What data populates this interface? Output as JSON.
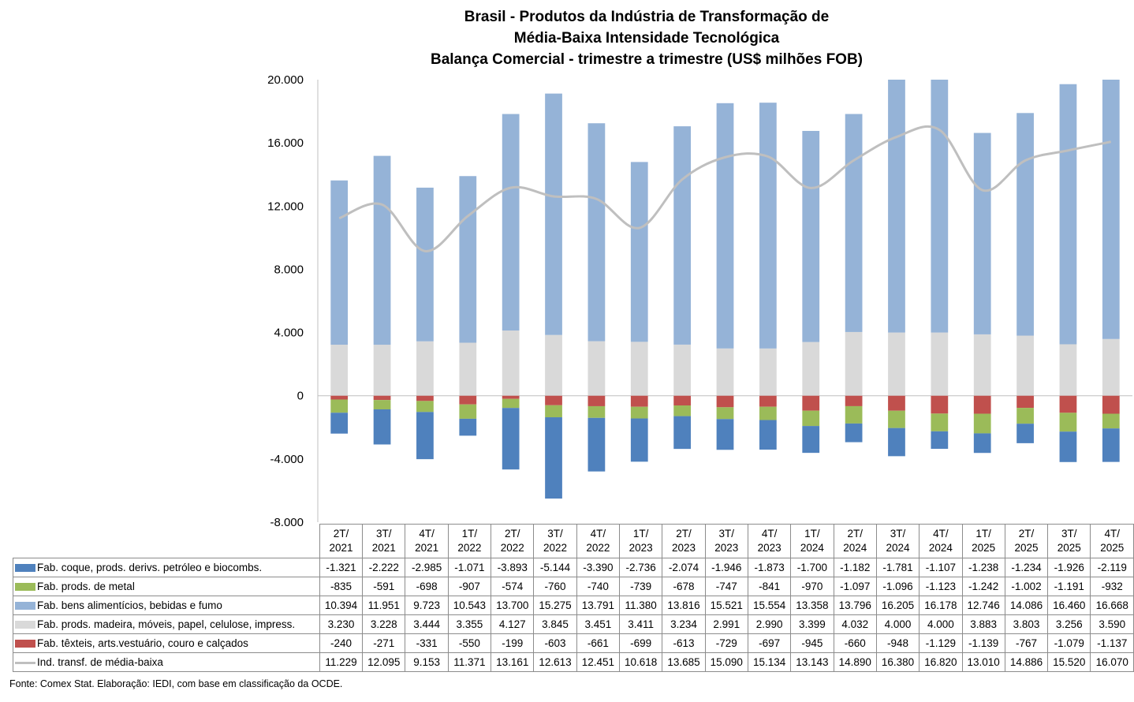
{
  "chart_data": {
    "type": "bar",
    "stacked": true,
    "title": "Brasil - Produtos da Indústria de Transformação de Média-Baixa Intensidade Tecnológica Balança Comercial - trimestre a trimestre (US$ milhões FOB)",
    "title_lines": [
      "Brasil - Produtos da Indústria de Transformação de",
      "Média-Baixa Intensidade Tecnológica",
      "Balança Comercial - trimestre a trimestre (US$ milhões FOB)"
    ],
    "xlabel": "",
    "ylabel": "",
    "ylim": [
      -8000,
      20000
    ],
    "yticks": [
      -8000,
      -4000,
      0,
      4000,
      8000,
      12000,
      16000,
      20000
    ],
    "ytick_labels": [
      "-8.000",
      "-4.000",
      "0",
      "4.000",
      "8.000",
      "12.000",
      "16.000",
      "20.000"
    ],
    "grid": false,
    "legend": "table-below",
    "categories": [
      [
        "2T/",
        "2021"
      ],
      [
        "3T/",
        "2021"
      ],
      [
        "4T/",
        "2021"
      ],
      [
        "1T/",
        "2022"
      ],
      [
        "2T/",
        "2022"
      ],
      [
        "3T/",
        "2022"
      ],
      [
        "4T/",
        "2022"
      ],
      [
        "1T/",
        "2023"
      ],
      [
        "2T/",
        "2023"
      ],
      [
        "3T/",
        "2023"
      ],
      [
        "4T/",
        "2023"
      ],
      [
        "1T/",
        "2024"
      ],
      [
        "2T/",
        "2024"
      ],
      [
        "3T/",
        "2024"
      ],
      [
        "4T/",
        "2024"
      ],
      [
        "1T/",
        "2025"
      ],
      [
        "2T/",
        "2025"
      ],
      [
        "3T/",
        "2025"
      ],
      [
        "4T/",
        "2025"
      ]
    ],
    "series": [
      {
        "name": "Fab. coque, prods. derivs. petróleo e biocombs.",
        "kind": "bar",
        "color": "#4f81bd",
        "values": [
          -1321,
          -2222,
          -2985,
          -1071,
          -3893,
          -5144,
          -3390,
          -2736,
          -2074,
          -1946,
          -1873,
          -1700,
          -1182,
          -1781,
          -1107,
          -1238,
          -1234,
          -1926,
          -2119
        ],
        "labels": [
          "-1.321",
          "-2.222",
          "-2.985",
          "-1.071",
          "-3.893",
          "-5.144",
          "-3.390",
          "-2.736",
          "-2.074",
          "-1.946",
          "-1.873",
          "-1.700",
          "-1.182",
          "-1.781",
          "-1.107",
          "-1.238",
          "-1.234",
          "-1.926",
          "-2.119"
        ]
      },
      {
        "name": "Fab. prods. de metal",
        "kind": "bar",
        "color": "#9bbb59",
        "values": [
          -835,
          -591,
          -698,
          -907,
          -574,
          -760,
          -740,
          -739,
          -678,
          -747,
          -841,
          -970,
          -1097,
          -1096,
          -1123,
          -1242,
          -1002,
          -1191,
          -932
        ],
        "labels": [
          "-835",
          "-591",
          "-698",
          "-907",
          "-574",
          "-760",
          "-740",
          "-739",
          "-678",
          "-747",
          "-841",
          "-970",
          "-1.097",
          "-1.096",
          "-1.123",
          "-1.242",
          "-1.002",
          "-1.191",
          "-932"
        ]
      },
      {
        "name": "Fab. bens alimentícios, bebidas e fumo",
        "kind": "bar",
        "color": "#95b3d7",
        "values": [
          10394,
          11951,
          9723,
          10543,
          13700,
          15275,
          13791,
          11380,
          13816,
          15521,
          15554,
          13358,
          13796,
          16205,
          16178,
          12746,
          14086,
          16460,
          16668
        ],
        "labels": [
          "10.394",
          "11.951",
          "9.723",
          "10.543",
          "13.700",
          "15.275",
          "13.791",
          "11.380",
          "13.816",
          "15.521",
          "15.554",
          "13.358",
          "13.796",
          "16.205",
          "16.178",
          "12.746",
          "14.086",
          "16.460",
          "16.668"
        ]
      },
      {
        "name": "Fab. prods. madeira, móveis, papel, celulose, impress.",
        "kind": "bar",
        "color": "#d9d9d9",
        "values": [
          3230,
          3228,
          3444,
          3355,
          4127,
          3845,
          3451,
          3411,
          3234,
          2991,
          2990,
          3399,
          4032,
          4000,
          4000,
          3883,
          3803,
          3256,
          3590
        ],
        "labels": [
          "3.230",
          "3.228",
          "3.444",
          "3.355",
          "4.127",
          "3.845",
          "3.451",
          "3.411",
          "3.234",
          "2.991",
          "2.990",
          "3.399",
          "4.032",
          "4.000",
          "4.000",
          "3.883",
          "3.803",
          "3.256",
          "3.590"
        ]
      },
      {
        "name": "Fab. têxteis, arts.vestuário, couro e calçados",
        "kind": "bar",
        "color": "#c0504d",
        "values": [
          -240,
          -271,
          -331,
          -550,
          -199,
          -603,
          -661,
          -699,
          -613,
          -729,
          -697,
          -945,
          -660,
          -948,
          -1129,
          -1139,
          -767,
          -1079,
          -1137
        ],
        "labels": [
          "-240",
          "-271",
          "-331",
          "-550",
          "-199",
          "-603",
          "-661",
          "-699",
          "-613",
          "-729",
          "-697",
          "-945",
          "-660",
          "-948",
          "-1.129",
          "-1.139",
          "-767",
          "-1.079",
          "-1.137"
        ]
      },
      {
        "name": "Ind. transf. de média-baixa",
        "kind": "line",
        "smooth": true,
        "color": "#bfbfbf",
        "values": [
          11229,
          12095,
          9153,
          11371,
          13161,
          12613,
          12451,
          10618,
          13685,
          15090,
          15134,
          13143,
          14890,
          16380,
          16820,
          13010,
          14886,
          15520,
          16070
        ],
        "labels": [
          "11.229",
          "12.095",
          "9.153",
          "11.371",
          "13.161",
          "12.613",
          "12.451",
          "10.618",
          "13.685",
          "15.090",
          "15.134",
          "13.143",
          "14.890",
          "16.380",
          "16.820",
          "13.010",
          "14.886",
          "15.520",
          "16.070"
        ]
      }
    ],
    "stack_order_positive": [
      "Fab. prods. madeira, móveis, papel, celulose, impress.",
      "Fab. bens alimentícios, bebidas e fumo"
    ],
    "stack_order_negative": [
      "Fab. têxteis, arts.vestuário, couro e calçados",
      "Fab. prods. de metal",
      "Fab. coque, prods. derivs. petróleo e biocombs."
    ],
    "source": "Fonte:  Comex Stat. Elaboração: IEDI, com base em classificação da OCDE."
  }
}
